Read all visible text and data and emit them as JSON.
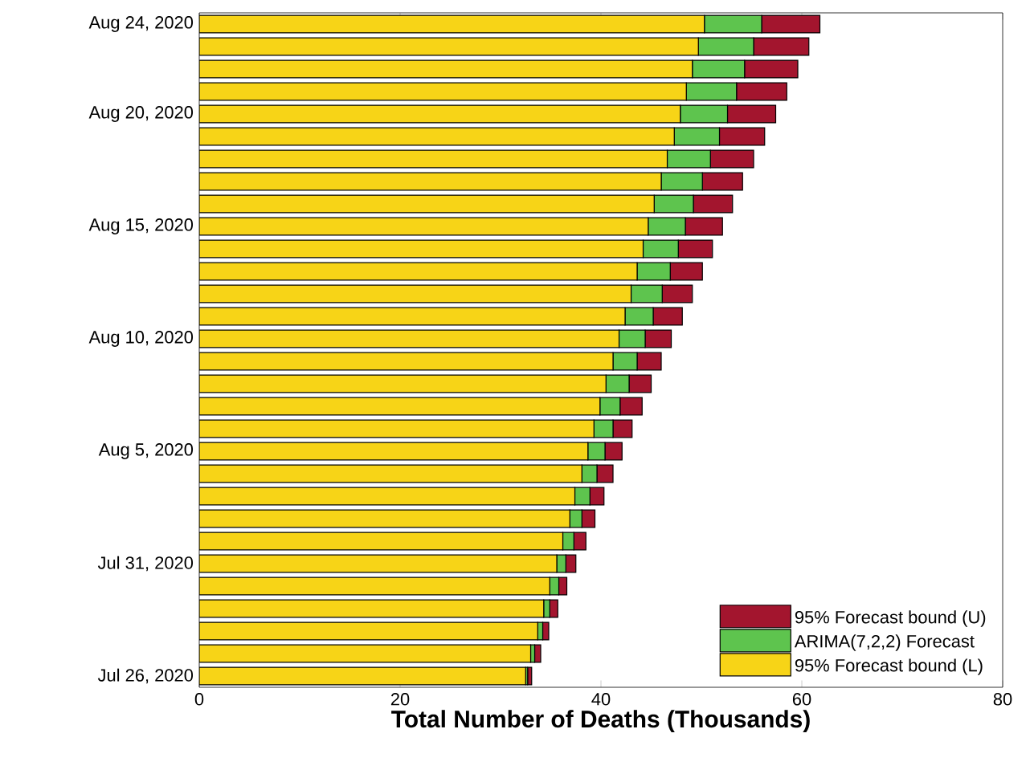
{
  "chart_data": {
    "type": "bar",
    "orientation": "horizontal",
    "stacked": true,
    "xlabel": "Total Number of Deaths (Thousands)",
    "categories": [
      "Aug 24, 2020",
      null,
      null,
      null,
      "Aug 20, 2020",
      null,
      null,
      null,
      null,
      "Aug 15, 2020",
      null,
      null,
      null,
      null,
      "Aug 10, 2020",
      null,
      null,
      null,
      null,
      "Aug 5, 2020",
      null,
      null,
      null,
      null,
      "Jul 31, 2020",
      null,
      null,
      null,
      null,
      "Jul 26, 2020"
    ],
    "series": [
      {
        "name": "95% Forecast bound (L)",
        "color": "#f7d417",
        "values": [
          50.3,
          49.7,
          49.1,
          48.5,
          47.9,
          47.3,
          46.6,
          46.0,
          45.3,
          44.7,
          44.2,
          43.6,
          43.0,
          42.4,
          41.8,
          41.2,
          40.5,
          39.9,
          39.3,
          38.7,
          38.1,
          37.4,
          36.9,
          36.2,
          35.6,
          34.9,
          34.3,
          33.7,
          33.0,
          32.5
        ]
      },
      {
        "name": "ARIMA(7,2,2) Forecast",
        "color": "#5ec44e",
        "values": [
          5.7,
          5.5,
          5.2,
          5.0,
          4.7,
          4.5,
          4.3,
          4.1,
          3.9,
          3.7,
          3.5,
          3.3,
          3.1,
          2.8,
          2.6,
          2.4,
          2.3,
          2.0,
          1.9,
          1.7,
          1.5,
          1.5,
          1.2,
          1.1,
          0.9,
          0.9,
          0.6,
          0.5,
          0.4,
          0.2
        ]
      },
      {
        "name": "95% Forecast bound (U)",
        "color": "#a3152e",
        "values": [
          5.8,
          5.5,
          5.3,
          5.0,
          4.8,
          4.5,
          4.3,
          4.0,
          3.9,
          3.7,
          3.4,
          3.2,
          3.0,
          2.9,
          2.6,
          2.4,
          2.2,
          2.2,
          1.9,
          1.7,
          1.6,
          1.4,
          1.3,
          1.2,
          1.0,
          0.8,
          0.8,
          0.6,
          0.6,
          0.4
        ]
      }
    ],
    "xlim": [
      0,
      80
    ],
    "xticks": [
      0,
      20,
      40,
      60,
      80
    ],
    "grid": false,
    "legend": "bottom right"
  }
}
